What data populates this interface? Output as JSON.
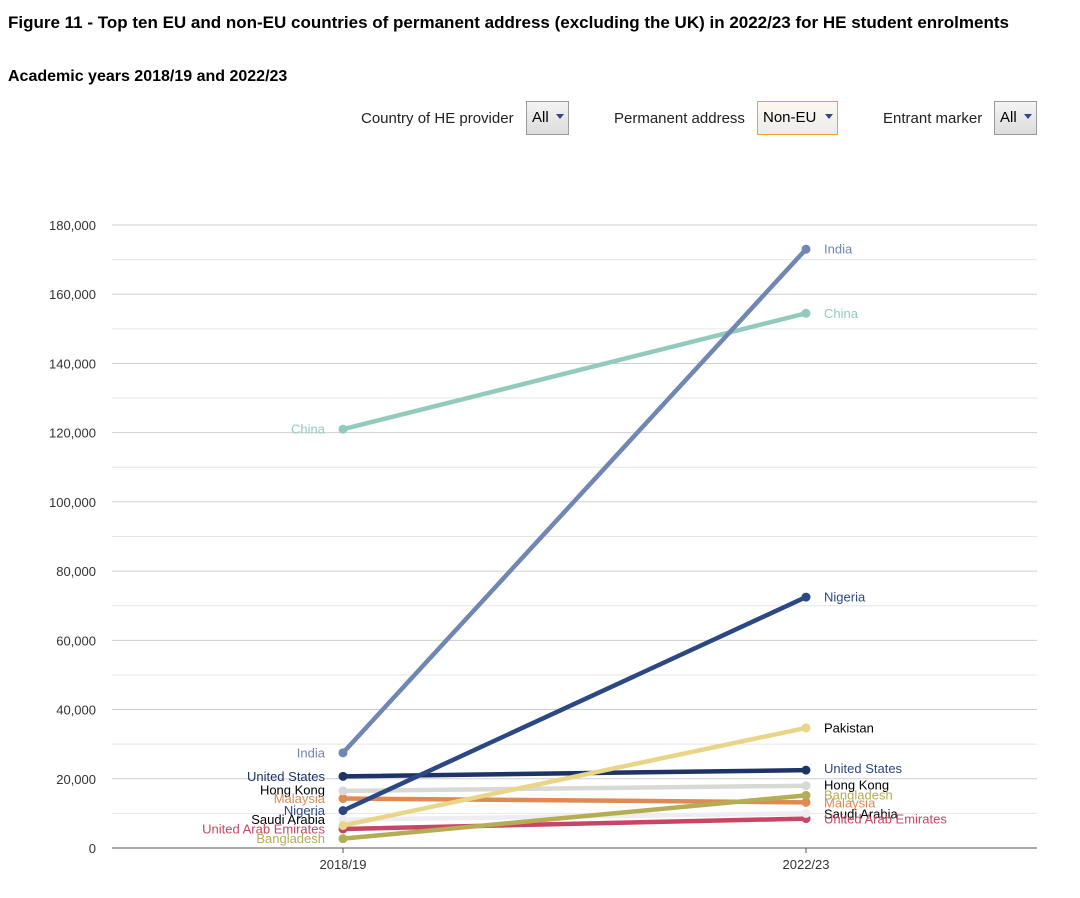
{
  "title": "Figure 11 - Top ten EU and non-EU countries of permanent address (excluding the UK) in 2022/23 for HE student enrolments",
  "subtitle": "Academic years 2018/19 and 2022/23",
  "filters": {
    "provider_label": "Country of HE provider",
    "provider_value": "All",
    "address_label": "Permanent address",
    "address_value": "Non-EU",
    "entrant_label": "Entrant marker",
    "entrant_value": "All"
  },
  "chart_data": {
    "type": "line",
    "x": [
      "2018/19",
      "2022/23"
    ],
    "ylim": [
      0,
      180000
    ],
    "y_ticks": [
      "0",
      "20,000",
      "40,000",
      "60,000",
      "80,000",
      "100,000",
      "120,000",
      "140,000",
      "160,000",
      "180,000"
    ],
    "grid": true,
    "series": [
      {
        "name": "India",
        "values": [
          27500,
          173000
        ],
        "color": "#7086b3"
      },
      {
        "name": "China",
        "values": [
          121000,
          154500
        ],
        "color": "#92cbbe"
      },
      {
        "name": "Nigeria",
        "values": [
          10800,
          72500
        ],
        "color": "#2b4882"
      },
      {
        "name": "Pakistan",
        "values": [
          6500,
          34700
        ],
        "color": "#e8d588"
      },
      {
        "name": "United States",
        "values": [
          20700,
          22500
        ],
        "color": "#1e3366"
      },
      {
        "name": "Hong Kong",
        "values": [
          16500,
          18000
        ],
        "color": "#d8d8d4"
      },
      {
        "name": "Bangladesh",
        "values": [
          2700,
          15200
        ],
        "color": "#b4ad55"
      },
      {
        "name": "Malaysia",
        "values": [
          14300,
          13200
        ],
        "color": "#df8a52"
      },
      {
        "name": "Saudi Arabia",
        "values": [
          8200,
          10000
        ],
        "color": "#ededf3"
      },
      {
        "name": "United Arab Emirates",
        "values": [
          5500,
          8500
        ],
        "color": "#c94565"
      }
    ],
    "left_labels": [
      {
        "text": "China",
        "value": 121000,
        "color": "#92cbbe"
      },
      {
        "text": "India",
        "value": 27500,
        "color": "#7086b3"
      },
      {
        "text": "United States",
        "value": 20700,
        "color": "#1e3366"
      },
      {
        "text": "Hong Kong",
        "value": 16800,
        "color": "#000000"
      },
      {
        "text": "Malaysia",
        "value": 14300,
        "color": "#df8a52"
      },
      {
        "text": "Nigeria",
        "value": 10800,
        "color": "#2b4882"
      },
      {
        "text": "Saudi Arabia",
        "value": 8200,
        "color": "#000000"
      },
      {
        "text": "United Arab Emirates",
        "value": 5500,
        "color": "#c94565"
      },
      {
        "text": "Bangladesh",
        "value": 2700,
        "color": "#b4ad55"
      }
    ],
    "right_labels": [
      {
        "text": "India",
        "value": 173000,
        "color": "#7086b3"
      },
      {
        "text": "China",
        "value": 154500,
        "color": "#92cbbe"
      },
      {
        "text": "Nigeria",
        "value": 72500,
        "color": "#2b4882"
      },
      {
        "text": "Pakistan",
        "value": 34700,
        "color": "#000000"
      },
      {
        "text": "United States",
        "value": 23000,
        "color": "#2b4882"
      },
      {
        "text": "Hong Kong",
        "value": 18200,
        "color": "#000000"
      },
      {
        "text": "Bangladesh",
        "value": 15300,
        "color": "#b4ad55"
      },
      {
        "text": "Malaysia",
        "value": 13000,
        "color": "#df8a52"
      },
      {
        "text": "Saudi Arabia",
        "value": 9800,
        "color": "#000000"
      },
      {
        "text": "United Arab Emirates",
        "value": 8400,
        "color": "#c94565"
      }
    ]
  }
}
